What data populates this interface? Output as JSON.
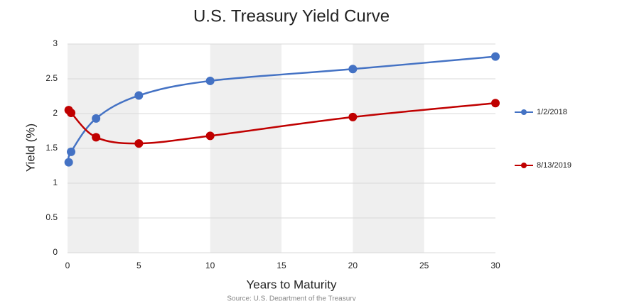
{
  "chart_data": {
    "type": "line",
    "title": "U.S. Treasury Yield Curve",
    "x_label": "Years to Maturity",
    "y_label": "Yield (%)",
    "source": "Source: U.S. Department of the Treasury",
    "x": [
      0.083,
      0.25,
      2,
      5,
      10,
      20,
      30
    ],
    "series": [
      {
        "name": "1/2/2018",
        "color": "#4472c4",
        "values": [
          1.3,
          1.45,
          1.93,
          2.26,
          2.47,
          2.64,
          2.82
        ]
      },
      {
        "name": "8/13/2019",
        "color": "#c00000",
        "values": [
          2.05,
          2.01,
          1.66,
          1.57,
          1.68,
          1.95,
          2.15
        ]
      }
    ],
    "xlim": [
      0,
      30
    ],
    "xticks": [
      0,
      5,
      10,
      15,
      20,
      25,
      30
    ],
    "ylim": [
      0,
      3
    ],
    "yticks": [
      0,
      0.5,
      1,
      1.5,
      2,
      2.5,
      3
    ],
    "grid": true,
    "alternating_bands": true,
    "legend": "right"
  }
}
